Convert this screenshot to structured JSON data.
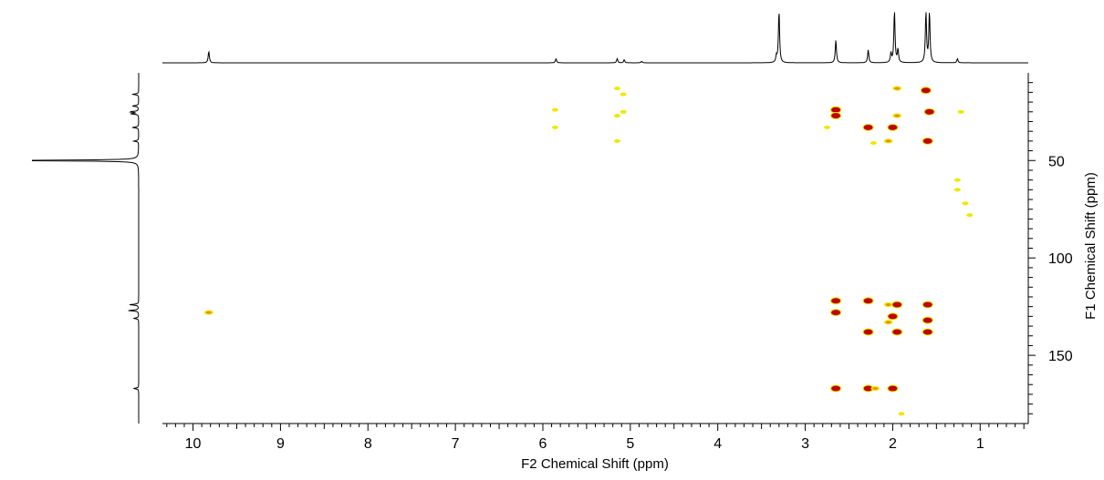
{
  "chart_data": {
    "type": "heatmap",
    "title": "",
    "xlabel": "F2 Chemical Shift (ppm)",
    "ylabel": "F1 Chemical Shift (ppm)",
    "xlim": [
      10.35,
      0.45
    ],
    "ylim": [
      5,
      185
    ],
    "x_ticks": [
      "10",
      "9",
      "8",
      "7",
      "6",
      "5",
      "4",
      "3",
      "2",
      "1"
    ],
    "y_ticks": [
      "50",
      "100",
      "150"
    ],
    "colors": {
      "strong": "#c00000",
      "medium": "#e89400",
      "weak": "#f0e800"
    },
    "f2_projection_peaks": [
      {
        "ppm": 9.82,
        "height": 0.22
      },
      {
        "ppm": 5.85,
        "height": 0.08
      },
      {
        "ppm": 5.15,
        "height": 0.08
      },
      {
        "ppm": 5.07,
        "height": 0.06
      },
      {
        "ppm": 4.87,
        "height": 0.03
      },
      {
        "ppm": 3.33,
        "height": 0.12
      },
      {
        "ppm": 3.3,
        "height": 1.0
      },
      {
        "ppm": 2.65,
        "height": 0.44
      },
      {
        "ppm": 2.28,
        "height": 0.25
      },
      {
        "ppm": 2.02,
        "height": 0.18
      },
      {
        "ppm": 1.98,
        "height": 1.0
      },
      {
        "ppm": 1.94,
        "height": 0.25
      },
      {
        "ppm": 1.62,
        "height": 0.97
      },
      {
        "ppm": 1.58,
        "height": 0.97
      },
      {
        "ppm": 1.26,
        "height": 0.08
      }
    ],
    "f1_projection_peaks": [
      {
        "ppm": 16,
        "height": 0.05
      },
      {
        "ppm": 22,
        "height": 0.05
      },
      {
        "ppm": 25,
        "height": 0.07
      },
      {
        "ppm": 26,
        "height": 0.06
      },
      {
        "ppm": 33,
        "height": 0.05
      },
      {
        "ppm": 40,
        "height": 0.04
      },
      {
        "ppm": 50,
        "height": 1.0
      },
      {
        "ppm": 124,
        "height": 0.07
      },
      {
        "ppm": 127,
        "height": 0.08
      },
      {
        "ppm": 131,
        "height": 0.04
      },
      {
        "ppm": 167,
        "height": 0.04
      }
    ],
    "correlations": [
      {
        "f2": 9.82,
        "f1": 128,
        "intensity": "medium"
      },
      {
        "f2": 5.86,
        "f1": 24,
        "intensity": "weak"
      },
      {
        "f2": 5.86,
        "f1": 33,
        "intensity": "weak"
      },
      {
        "f2": 5.15,
        "f1": 13,
        "intensity": "weak"
      },
      {
        "f2": 5.08,
        "f1": 16,
        "intensity": "weak"
      },
      {
        "f2": 5.15,
        "f1": 27,
        "intensity": "weak"
      },
      {
        "f2": 5.08,
        "f1": 25,
        "intensity": "weak"
      },
      {
        "f2": 5.15,
        "f1": 40,
        "intensity": "weak"
      },
      {
        "f2": 2.65,
        "f1": 24,
        "intensity": "strong"
      },
      {
        "f2": 2.65,
        "f1": 27,
        "intensity": "strong"
      },
      {
        "f2": 2.65,
        "f1": 122,
        "intensity": "strong"
      },
      {
        "f2": 2.65,
        "f1": 128,
        "intensity": "strong"
      },
      {
        "f2": 2.65,
        "f1": 167,
        "intensity": "strong"
      },
      {
        "f2": 2.28,
        "f1": 33,
        "intensity": "strong"
      },
      {
        "f2": 2.28,
        "f1": 122,
        "intensity": "strong"
      },
      {
        "f2": 2.28,
        "f1": 138,
        "intensity": "strong"
      },
      {
        "f2": 2.28,
        "f1": 167,
        "intensity": "strong"
      },
      {
        "f2": 2.22,
        "f1": 41,
        "intensity": "weak"
      },
      {
        "f2": 2.2,
        "f1": 167,
        "intensity": "medium"
      },
      {
        "f2": 2.05,
        "f1": 40,
        "intensity": "medium"
      },
      {
        "f2": 2.05,
        "f1": 124,
        "intensity": "medium"
      },
      {
        "f2": 2.05,
        "f1": 133,
        "intensity": "medium"
      },
      {
        "f2": 2.0,
        "f1": 33,
        "intensity": "strong"
      },
      {
        "f2": 2.0,
        "f1": 130,
        "intensity": "strong"
      },
      {
        "f2": 2.0,
        "f1": 167,
        "intensity": "strong"
      },
      {
        "f2": 1.95,
        "f1": 13,
        "intensity": "medium"
      },
      {
        "f2": 1.95,
        "f1": 27,
        "intensity": "medium"
      },
      {
        "f2": 1.95,
        "f1": 124,
        "intensity": "strong"
      },
      {
        "f2": 1.95,
        "f1": 138,
        "intensity": "strong"
      },
      {
        "f2": 1.62,
        "f1": 14,
        "intensity": "strong"
      },
      {
        "f2": 1.58,
        "f1": 25,
        "intensity": "strong"
      },
      {
        "f2": 1.6,
        "f1": 40,
        "intensity": "strong"
      },
      {
        "f2": 1.6,
        "f1": 124,
        "intensity": "strong"
      },
      {
        "f2": 1.6,
        "f1": 132,
        "intensity": "strong"
      },
      {
        "f2": 1.6,
        "f1": 138,
        "intensity": "strong"
      },
      {
        "f2": 1.26,
        "f1": 60,
        "intensity": "weak"
      },
      {
        "f2": 1.26,
        "f1": 65,
        "intensity": "weak"
      },
      {
        "f2": 1.17,
        "f1": 72,
        "intensity": "weak"
      },
      {
        "f2": 1.12,
        "f1": 78,
        "intensity": "weak"
      },
      {
        "f2": 1.22,
        "f1": 25,
        "intensity": "weak"
      },
      {
        "f2": 2.75,
        "f1": 33,
        "intensity": "weak"
      },
      {
        "f2": 1.9,
        "f1": 180,
        "intensity": "weak"
      }
    ]
  }
}
